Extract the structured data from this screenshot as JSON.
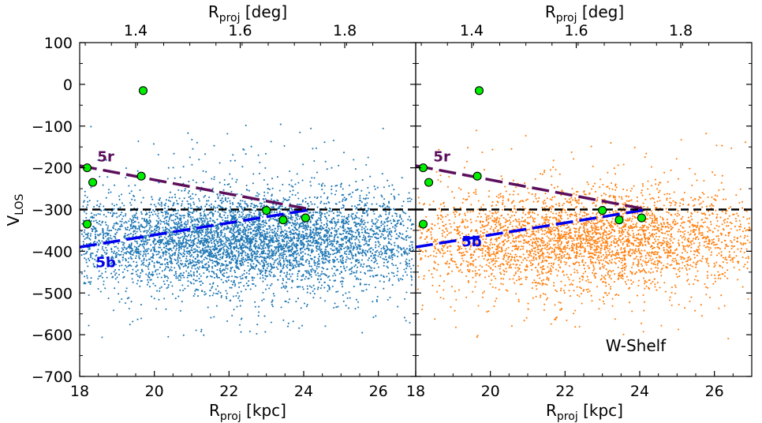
{
  "chart_data": [
    {
      "type": "scatter",
      "panel": "left",
      "title": "",
      "xlabel": "R_proj [kpc]",
      "xlabel_main": "R",
      "xlabel_sub": "proj",
      "xlabel_unit": " [kpc]",
      "top_xlabel_main": "R",
      "top_xlabel_sub": "proj",
      "top_xlabel_unit": " [deg]",
      "ylabel_main": "V",
      "ylabel_sub": "LOS",
      "xlim": [
        18,
        27
      ],
      "ylim": [
        -700,
        100
      ],
      "xticks": [
        18,
        20,
        22,
        24,
        26
      ],
      "xtick_labels": [
        "18",
        "20",
        "22",
        "24",
        "26"
      ],
      "yticks": [
        100,
        0,
        -100,
        -200,
        -300,
        -400,
        -500,
        -600,
        -700
      ],
      "ytick_labels": [
        "100",
        "0",
        "−100",
        "−200",
        "−300",
        "−400",
        "−500",
        "−600",
        "−700"
      ],
      "top_xticks_kpc": [
        19.5,
        22.3,
        25.1
      ],
      "top_xtick_labels": [
        "1.4",
        "1.6",
        "1.8"
      ],
      "series": [
        {
          "name": "stars",
          "color": "#1f77b4",
          "marker": "dot",
          "count": 5200,
          "x_range": [
            18,
            27
          ],
          "center_velocity": -375,
          "dispersion": 55
        },
        {
          "name": "members",
          "color": "#00ee00",
          "marker": "circle",
          "points": [
            {
              "x": 18.2,
              "y": -200
            },
            {
              "x": 18.35,
              "y": -235
            },
            {
              "x": 18.2,
              "y": -335
            },
            {
              "x": 19.65,
              "y": -220
            },
            {
              "x": 19.7,
              "y": -15
            },
            {
              "x": 23.0,
              "y": -302
            },
            {
              "x": 23.45,
              "y": -325
            },
            {
              "x": 24.05,
              "y": -320
            }
          ]
        }
      ],
      "lines": [
        {
          "name": "5r",
          "label": "5r",
          "color": "#5b0f5b",
          "style": "dashed",
          "x": [
            18.0,
            24.2
          ],
          "y": [
            -195,
            -300
          ]
        },
        {
          "name": "5b",
          "label": "5b",
          "color": "#0000ee",
          "style": "dashed",
          "x": [
            18.0,
            24.2
          ],
          "y": [
            -390,
            -300
          ]
        },
        {
          "name": "reference",
          "label": "",
          "color": "#000000",
          "style": "dashed",
          "x": [
            18,
            27
          ],
          "y": [
            -300,
            -300
          ]
        }
      ],
      "annotations": [
        {
          "text": "5r",
          "x": 18.7,
          "y": -185,
          "color": "#5b0f5b"
        },
        {
          "text": "5b",
          "x": 18.7,
          "y": -438,
          "color": "#0000ee"
        }
      ],
      "panel_label": ""
    },
    {
      "type": "scatter",
      "panel": "right",
      "title": "",
      "xlabel_main": "R",
      "xlabel_sub": "proj",
      "xlabel_unit": " [kpc]",
      "top_xlabel_main": "R",
      "top_xlabel_sub": "proj",
      "top_xlabel_unit": " [deg]",
      "xlim": [
        18,
        27
      ],
      "ylim": [
        -700,
        100
      ],
      "xticks": [
        18,
        20,
        22,
        24,
        26
      ],
      "xtick_labels": [
        "18",
        "20",
        "22",
        "24",
        "26"
      ],
      "top_xticks_kpc": [
        19.5,
        22.3,
        25.1
      ],
      "top_xtick_labels": [
        "1.4",
        "1.6",
        "1.8"
      ],
      "series": [
        {
          "name": "stars",
          "color": "#ff7f0e",
          "marker": "dot",
          "count": 3400,
          "x_range": [
            18,
            27
          ],
          "center_velocity": -375,
          "dispersion": 58
        },
        {
          "name": "members",
          "color": "#00ee00",
          "marker": "circle",
          "points": [
            {
              "x": 18.2,
              "y": -200
            },
            {
              "x": 18.35,
              "y": -235
            },
            {
              "x": 18.2,
              "y": -335
            },
            {
              "x": 19.65,
              "y": -220
            },
            {
              "x": 19.7,
              "y": -15
            },
            {
              "x": 23.0,
              "y": -302
            },
            {
              "x": 23.45,
              "y": -325
            },
            {
              "x": 24.05,
              "y": -320
            }
          ]
        }
      ],
      "lines": [
        {
          "name": "5r",
          "label": "5r",
          "color": "#5b0f5b",
          "style": "dashed",
          "x": [
            18.0,
            24.2
          ],
          "y": [
            -195,
            -300
          ]
        },
        {
          "name": "5b",
          "label": "5b",
          "color": "#0000ee",
          "style": "dashed",
          "x": [
            18.0,
            24.2
          ],
          "y": [
            -390,
            -300
          ]
        },
        {
          "name": "reference",
          "label": "",
          "color": "#000000",
          "style": "dashed",
          "x": [
            18,
            27
          ],
          "y": [
            -300,
            -300
          ]
        }
      ],
      "annotations": [
        {
          "text": "5r",
          "x": 18.7,
          "y": -185,
          "color": "#5b0f5b"
        },
        {
          "text": "5b",
          "x": 19.5,
          "y": -388,
          "color": "#0000ee"
        }
      ],
      "panel_label": "W-Shelf"
    }
  ]
}
